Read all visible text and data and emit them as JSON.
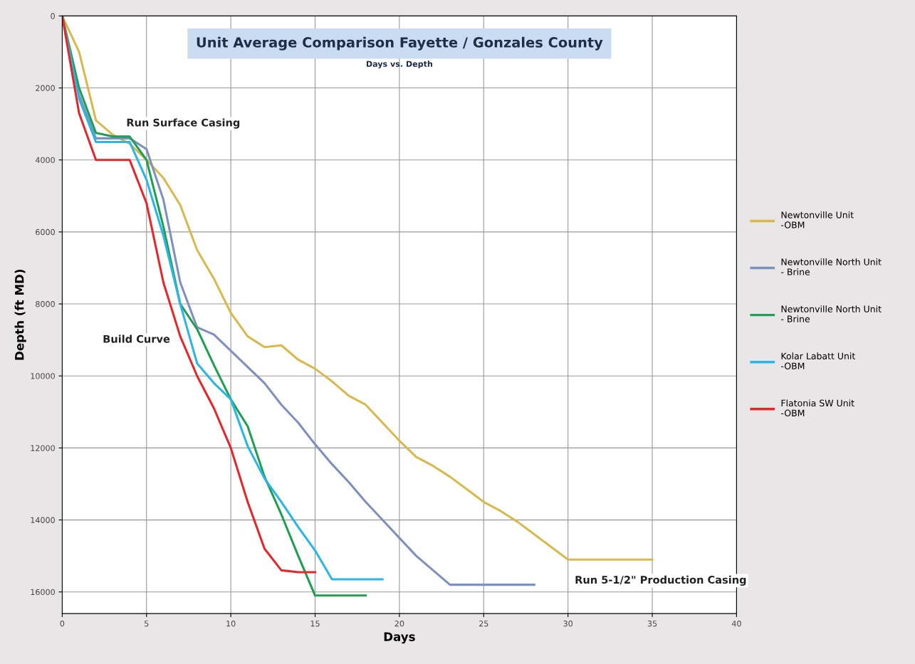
{
  "chart_data": {
    "type": "line",
    "title": "Unit Average Comparison Fayette / Gonzales County",
    "subtitle": "Days vs. Depth",
    "xlabel": "Days",
    "ylabel": "Depth (ft MD)",
    "xlim": [
      0,
      40
    ],
    "xticks": [
      0,
      5,
      10,
      15,
      20,
      25,
      30,
      35,
      40
    ],
    "ylim": [
      16600,
      0
    ],
    "yticks": [
      0,
      2000,
      4000,
      6000,
      8000,
      10000,
      12000,
      14000,
      16000
    ],
    "grid": true,
    "legend": "right",
    "marker": "none",
    "line_style": "solid",
    "series": [
      {
        "name": "Newtonville Unit\n-OBM",
        "color": "#d9b84c",
        "x": [
          0,
          1,
          2,
          3,
          4,
          5,
          6,
          7,
          8,
          9,
          10,
          11,
          12,
          13,
          14,
          15,
          16,
          17,
          18,
          19,
          20,
          21,
          22,
          23,
          24,
          25,
          26,
          27,
          28,
          29,
          30,
          35
        ],
        "values": [
          0,
          1000,
          2900,
          3300,
          3550,
          4000,
          4500,
          5250,
          6500,
          7300,
          8250,
          8900,
          9200,
          9150,
          9550,
          9800,
          10150,
          10550,
          10800,
          11300,
          11800,
          12250,
          12500,
          12800,
          13150,
          13500,
          13750,
          14050,
          14400,
          14750,
          15100,
          15100
        ]
      },
      {
        "name": "Newtonville North Unit\n- Brine",
        "color": "#7f8fbf",
        "x": [
          0,
          1,
          2,
          3,
          4,
          5,
          6,
          7,
          8,
          9,
          10,
          11,
          12,
          13,
          14,
          15,
          16,
          17,
          18,
          19,
          20,
          21,
          22,
          23,
          28
        ],
        "values": [
          0,
          2200,
          3400,
          3400,
          3400,
          3700,
          5100,
          7400,
          8650,
          8850,
          9300,
          9750,
          10200,
          10800,
          11300,
          11900,
          12450,
          12950,
          13500,
          14000,
          14500,
          15000,
          15400,
          15800,
          15800
        ]
      },
      {
        "name": "Newtonville North Unit\n- Brine",
        "color": "#1fa050",
        "x": [
          0,
          1,
          2,
          3,
          4,
          5,
          6,
          7,
          8,
          9,
          10,
          11,
          12,
          13,
          14,
          15,
          18
        ],
        "values": [
          0,
          2000,
          3250,
          3350,
          3350,
          4000,
          5850,
          8000,
          8700,
          9700,
          10650,
          11400,
          12800,
          13850,
          15000,
          16100,
          16100
        ]
      },
      {
        "name": "Kolar Labatt Unit\n-OBM",
        "color": "#29b6e8",
        "x": [
          0,
          1,
          2,
          3,
          4,
          5,
          6,
          7,
          8,
          9,
          10,
          11,
          12,
          13,
          14,
          15,
          16,
          19
        ],
        "values": [
          0,
          2300,
          3500,
          3500,
          3500,
          4550,
          6100,
          8000,
          9650,
          10200,
          10650,
          11950,
          12850,
          13500,
          14200,
          14850,
          15650,
          15650
        ]
      },
      {
        "name": "Flatonia SW Unit\n-OBM",
        "color": "#e8262a",
        "x": [
          0,
          1,
          2,
          3,
          4,
          5,
          6,
          7,
          8,
          9,
          10,
          11,
          12,
          13,
          14,
          15
        ],
        "values": [
          0,
          2700,
          4000,
          4000,
          4000,
          5200,
          7400,
          8900,
          10000,
          10900,
          12000,
          13500,
          14800,
          15400,
          15450,
          15450
        ]
      }
    ],
    "annotations": [
      "Run Surface Casing",
      "Build Curve",
      "Run 5-1/2\" Production Casing"
    ]
  }
}
